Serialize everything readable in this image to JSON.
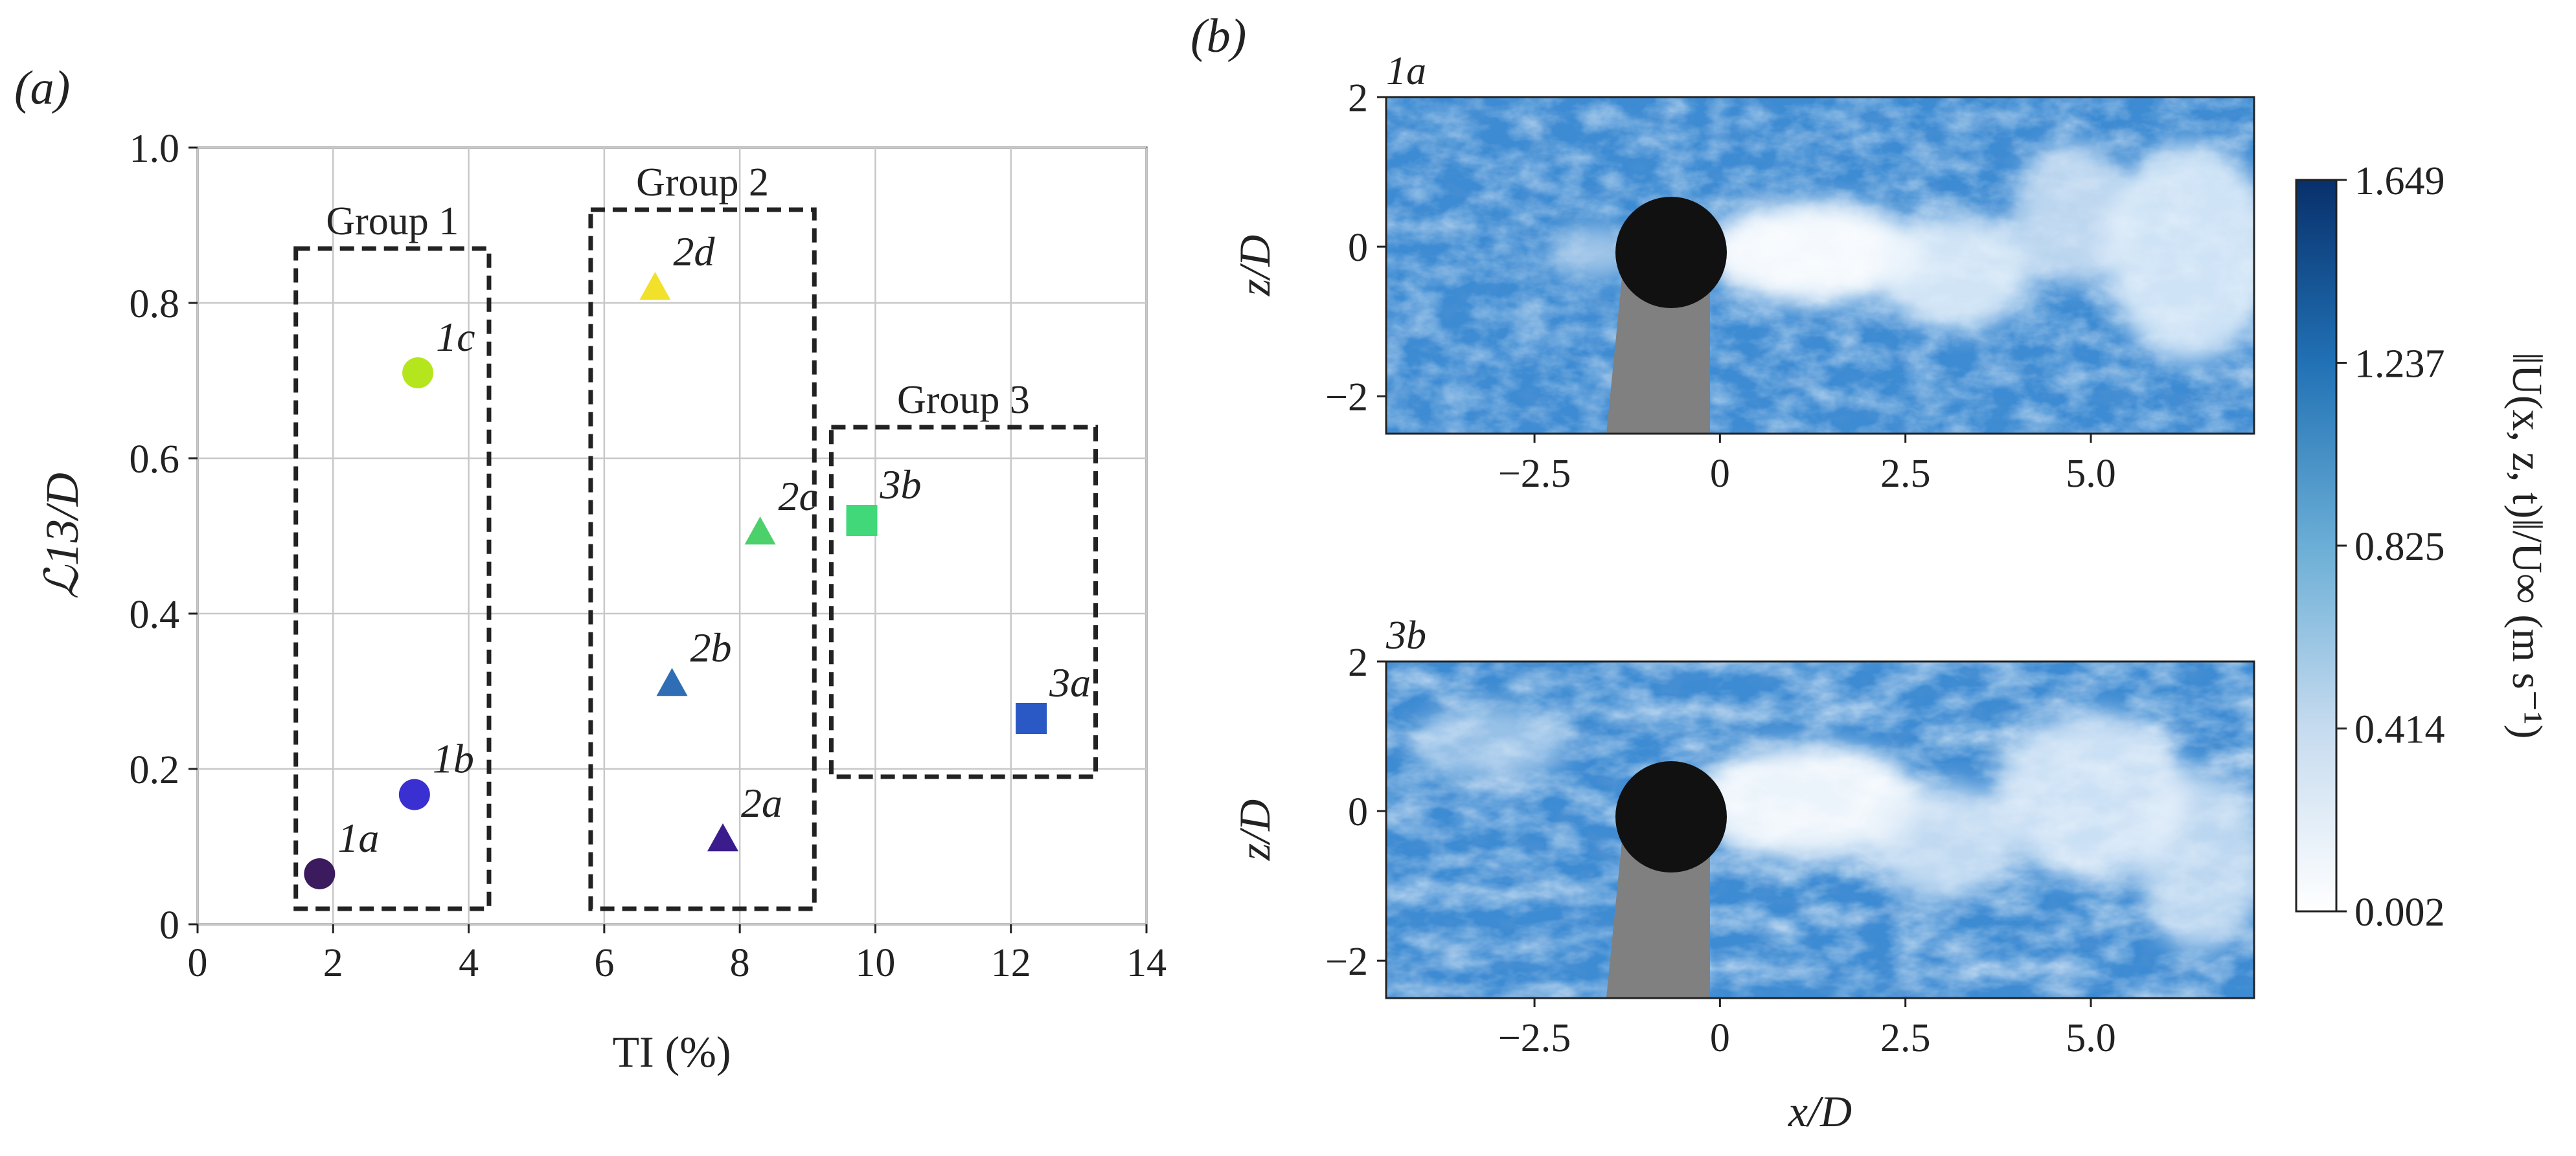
{
  "panel_a_label": "(a)",
  "panel_b_label": "(b)",
  "chart_data": [
    {
      "type": "scatter",
      "xlabel": "TI (%)",
      "ylabel": "ℒ13/D",
      "xlim": [
        0,
        14
      ],
      "ylim": [
        0,
        1.0
      ],
      "xticks": [
        "0",
        "2",
        "4",
        "6",
        "8",
        "10",
        "12",
        "14"
      ],
      "yticks": [
        "0",
        "0.2",
        "0.4",
        "0.6",
        "0.8",
        "1.0"
      ],
      "grid": true,
      "points": [
        {
          "label": "1a",
          "x": 1.8,
          "y": 0.065,
          "marker": "circle",
          "color": "#3b1a5e"
        },
        {
          "label": "1b",
          "x": 3.2,
          "y": 0.167,
          "marker": "circle",
          "color": "#3a2fd0"
        },
        {
          "label": "1c",
          "x": 3.25,
          "y": 0.71,
          "marker": "circle",
          "color": "#b5e61d"
        },
        {
          "label": "2a",
          "x": 7.75,
          "y": 0.11,
          "marker": "triangle",
          "color": "#3b1c8c"
        },
        {
          "label": "2b",
          "x": 7.0,
          "y": 0.31,
          "marker": "triangle",
          "color": "#2f6eb5"
        },
        {
          "label": "2c",
          "x": 8.3,
          "y": 0.505,
          "marker": "triangle",
          "color": "#4cd06a"
        },
        {
          "label": "2d",
          "x": 6.75,
          "y": 0.82,
          "marker": "triangle",
          "color": "#f2e12a"
        },
        {
          "label": "3a",
          "x": 12.3,
          "y": 0.265,
          "marker": "square",
          "color": "#2a58c4"
        },
        {
          "label": "3b",
          "x": 9.8,
          "y": 0.52,
          "marker": "square",
          "color": "#40d878"
        }
      ],
      "groups": [
        {
          "label": "Group 1",
          "x": [
            1.45,
            4.3
          ],
          "y": [
            0.02,
            0.87
          ]
        },
        {
          "label": "Group 2",
          "x": [
            5.8,
            9.1
          ],
          "y": [
            0.02,
            0.92
          ]
        },
        {
          "label": "Group 3",
          "x": [
            9.35,
            13.25
          ],
          "y": [
            0.19,
            0.64
          ]
        }
      ]
    },
    {
      "type": "heatmap",
      "title": "1a",
      "xlabel": "",
      "ylabel": "z/D",
      "xlim": [
        -4.5,
        7.2
      ],
      "ylim": [
        -2.5,
        2.0
      ],
      "xticks": [
        "−2.5",
        "0",
        "2.5",
        "5.0"
      ],
      "yticks": [
        "2",
        "0",
        "−2"
      ]
    },
    {
      "type": "heatmap",
      "title": "3b",
      "xlabel": "x/D",
      "ylabel": "z/D",
      "xlim": [
        -4.5,
        7.2
      ],
      "ylim": [
        -2.5,
        2.0
      ],
      "xticks": [
        "−2.5",
        "0",
        "2.5",
        "5.0"
      ],
      "yticks": [
        "2",
        "0",
        "−2"
      ]
    }
  ],
  "colorbar": {
    "label": "‖U(x, z, t)‖/U∞ (m s⁻¹)",
    "ticks": [
      "1.649",
      "1.237",
      "0.825",
      "0.414",
      "0.002"
    ],
    "min_color": "#ffffff",
    "max_color": "#08306b"
  },
  "colors": {
    "field_base": "#3d8bd3",
    "cylinder": "#111111",
    "support": "#808080"
  }
}
